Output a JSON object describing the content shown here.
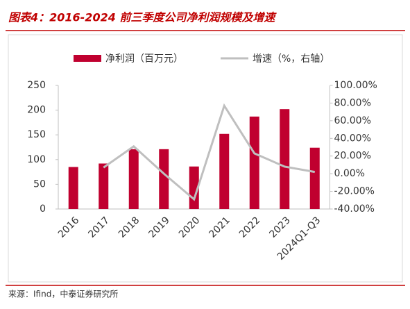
{
  "chart_data": {
    "type": "bar-line",
    "title": "图表4：2016-2024 前三季度公司净利润规模及增速",
    "source": "来源：Ifind，中泰证券研究所",
    "categories": [
      "2016",
      "2017",
      "2018",
      "2019",
      "2020",
      "2021",
      "2022",
      "2023",
      "2024Q1-Q3"
    ],
    "series": [
      {
        "name": "净利润（百万元）",
        "color": "#c0002f",
        "type": "bar",
        "values": [
          85,
          92,
          121,
          121,
          86,
          152,
          187,
          202,
          124
        ]
      },
      {
        "name": "增速（%，右轴）",
        "color": "#bfbfbf",
        "type": "line",
        "axis": "y2",
        "values": [
          null,
          7,
          31,
          0,
          -29,
          77,
          23,
          8,
          2
        ]
      }
    ],
    "ylim": [
      0,
      250
    ],
    "yticks": [
      0,
      50,
      100,
      150,
      200,
      250
    ],
    "y2lim": [
      -40,
      100
    ],
    "y2ticks": [
      {
        "value": -40,
        "label": "-40.00%"
      },
      {
        "value": -20,
        "label": "-20.00%"
      },
      {
        "value": 0,
        "label": "0.00%"
      },
      {
        "value": 20,
        "label": "20.00%"
      },
      {
        "value": 40,
        "label": "40.00%"
      },
      {
        "value": 60,
        "label": "60.00%"
      },
      {
        "value": 80,
        "label": "80.00%"
      },
      {
        "value": 100,
        "label": "100.00%"
      }
    ],
    "legend": "top"
  }
}
